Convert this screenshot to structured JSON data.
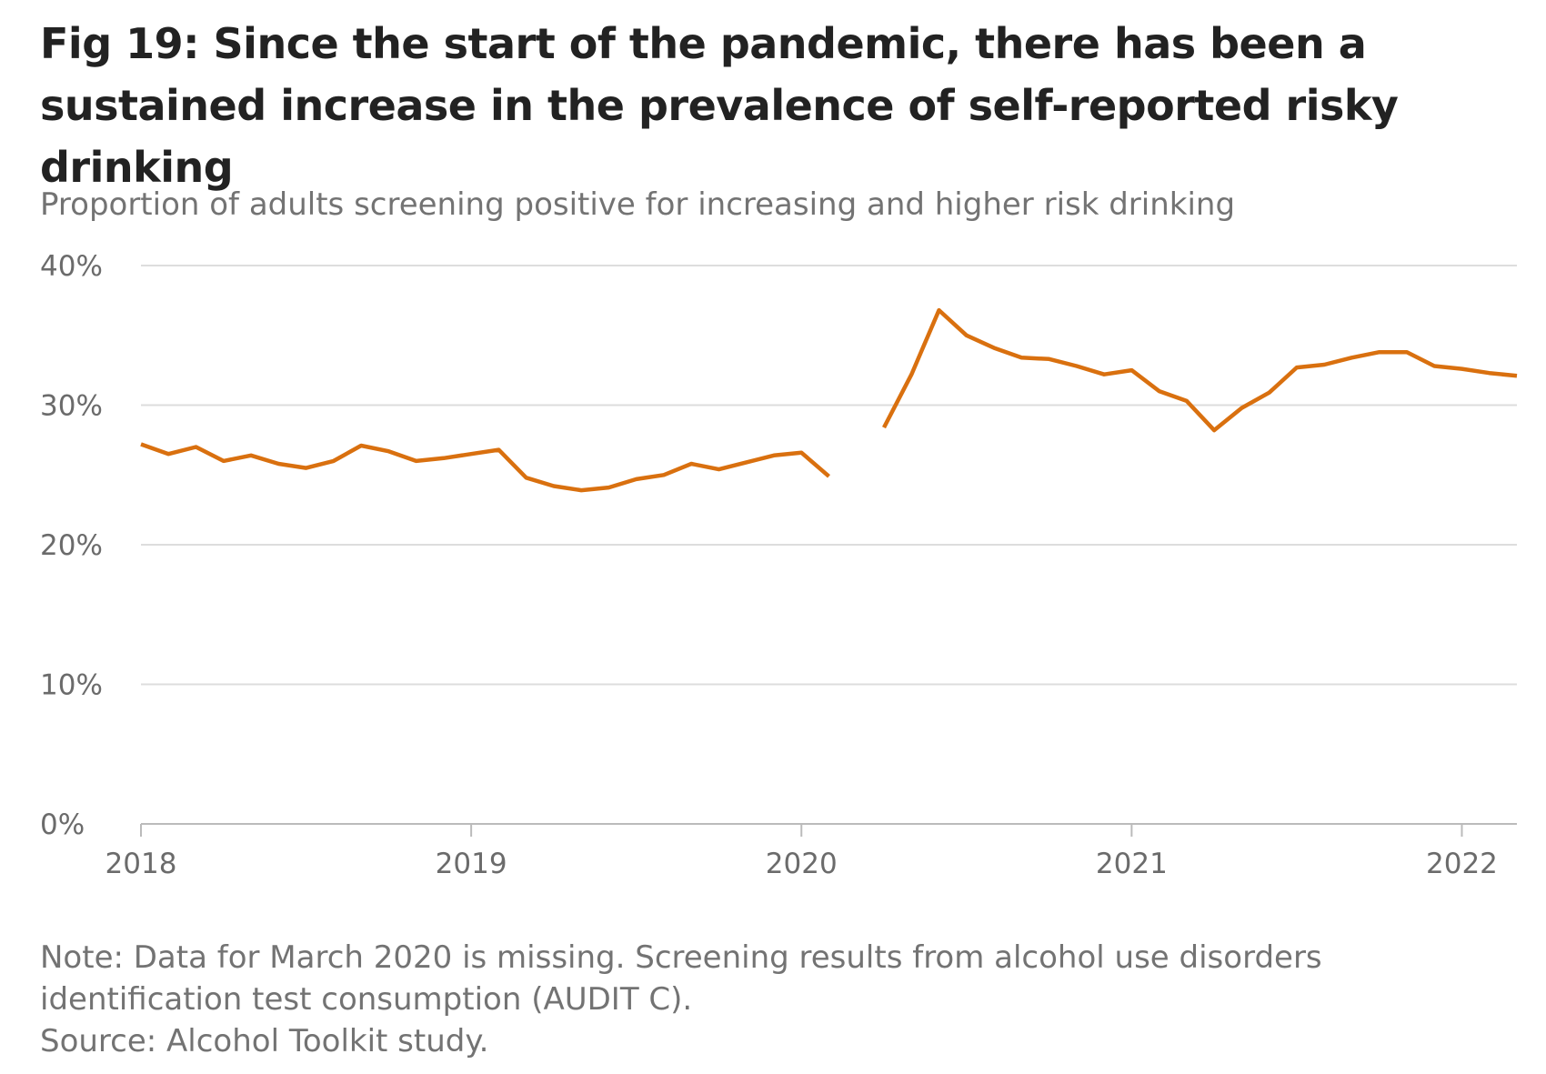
{
  "title": "Fig 19: Since the start of the pandemic, there has been a sustained increase in the prevalence of self-reported risky drinking",
  "subtitle": "Proportion of adults screening positive for increasing and higher risk drinking",
  "note": "Note: Data for March 2020 is missing. Screening results from alcohol use disorders identification test consumption (AUDIT C).",
  "source": "Source: Alcohol Toolkit study.",
  "colors": {
    "line": "#d9700f",
    "grid": "#dddddd",
    "axis": "#bbbbbb",
    "text": "#6b6b6b"
  },
  "chart_data": {
    "type": "line",
    "title": "Fig 19: Since the start of the pandemic, there has been a sustained increase in the prevalence of self-reported risky drinking",
    "ylabel": "Proportion of adults screening positive for increasing and higher risk drinking",
    "xlabel": "",
    "x_unit": "month",
    "xlim": [
      "2018-01",
      "2022-03"
    ],
    "ylim": [
      0,
      40
    ],
    "yticks": [
      {
        "value": 0,
        "label": "0%"
      },
      {
        "value": 10,
        "label": "10%"
      },
      {
        "value": 20,
        "label": "20%"
      },
      {
        "value": 30,
        "label": "30%"
      },
      {
        "value": 40,
        "label": "40%"
      }
    ],
    "xticks": [
      {
        "value": "2018-01",
        "label": "2018"
      },
      {
        "value": "2019-01",
        "label": "2019"
      },
      {
        "value": "2020-01",
        "label": "2020"
      },
      {
        "value": "2021-01",
        "label": "2021"
      },
      {
        "value": "2022-01",
        "label": "2022"
      }
    ],
    "grid": true,
    "legend": "none",
    "series": [
      {
        "x": [
          "2018-01",
          "2018-02",
          "2018-03",
          "2018-04",
          "2018-05",
          "2018-06",
          "2018-07",
          "2018-08",
          "2018-09",
          "2018-10",
          "2018-11",
          "2018-12",
          "2019-01",
          "2019-02",
          "2019-03",
          "2019-04",
          "2019-05",
          "2019-06",
          "2019-07",
          "2019-08",
          "2019-09",
          "2019-10",
          "2019-11",
          "2019-12",
          "2020-01",
          "2020-02",
          "2020-03",
          "2020-04",
          "2020-05",
          "2020-06",
          "2020-07",
          "2020-08",
          "2020-09",
          "2020-10",
          "2020-11",
          "2020-12",
          "2021-01",
          "2021-02",
          "2021-03",
          "2021-04",
          "2021-05",
          "2021-06",
          "2021-07",
          "2021-08",
          "2021-09",
          "2021-10",
          "2021-11",
          "2021-12",
          "2022-01",
          "2022-02",
          "2022-03"
        ],
        "values": [
          27.2,
          26.5,
          27.0,
          26.0,
          26.4,
          25.8,
          25.5,
          26.0,
          27.1,
          26.7,
          26.0,
          26.2,
          26.5,
          26.8,
          24.8,
          24.2,
          23.9,
          24.1,
          24.7,
          25.0,
          25.8,
          25.4,
          25.9,
          26.4,
          26.6,
          24.9,
          null,
          28.4,
          32.2,
          36.8,
          35.0,
          34.1,
          33.4,
          33.3,
          32.8,
          32.2,
          32.5,
          31.0,
          30.3,
          28.2,
          29.8,
          30.9,
          32.7,
          32.9,
          33.4,
          33.8,
          33.8,
          32.8,
          32.6,
          32.3,
          32.1
        ]
      }
    ]
  }
}
